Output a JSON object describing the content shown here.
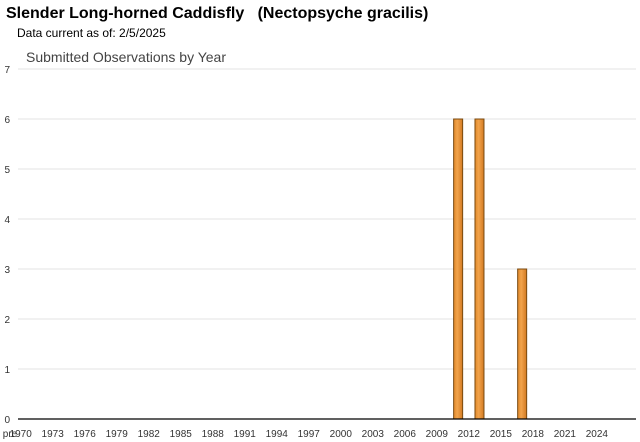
{
  "header": {
    "common_name": "Slender Long-horned Caddisfly",
    "scientific_name": "(Nectopsyche gracilis)",
    "data_current": "Data current as of: 2/5/2025"
  },
  "chart_data": {
    "type": "bar",
    "title": "Submitted Observations by Year",
    "xlabel": "",
    "ylabel": "",
    "ylim": [
      0,
      7
    ],
    "yticks": [
      0,
      1,
      2,
      3,
      4,
      5,
      6,
      7
    ],
    "grid": true,
    "categories": [
      "pre",
      "1970",
      "1971",
      "1972",
      "1973",
      "1974",
      "1975",
      "1976",
      "1977",
      "1978",
      "1979",
      "1980",
      "1981",
      "1982",
      "1983",
      "1984",
      "1985",
      "1986",
      "1987",
      "1988",
      "1989",
      "1990",
      "1991",
      "1992",
      "1993",
      "1994",
      "1995",
      "1996",
      "1997",
      "1998",
      "1999",
      "2000",
      "2001",
      "2002",
      "2003",
      "2004",
      "2005",
      "2006",
      "2007",
      "2008",
      "2009",
      "2010",
      "2011",
      "2012",
      "2013",
      "2014",
      "2015",
      "2016",
      "2017",
      "2018",
      "2019",
      "2020",
      "2021",
      "2022",
      "2023",
      "2024",
      "2025"
    ],
    "tick_labels": [
      "pre",
      "1970",
      "1973",
      "1976",
      "1979",
      "1982",
      "1985",
      "1988",
      "1991",
      "1994",
      "1997",
      "2000",
      "2003",
      "2006",
      "2009",
      "2012",
      "2015",
      "2018",
      "2021",
      "2024"
    ],
    "values": [
      0,
      0,
      0,
      0,
      0,
      0,
      0,
      0,
      0,
      0,
      0,
      0,
      0,
      0,
      0,
      0,
      0,
      0,
      0,
      0,
      0,
      0,
      0,
      0,
      0,
      0,
      0,
      0,
      0,
      0,
      0,
      0,
      0,
      0,
      0,
      0,
      0,
      0,
      0,
      0,
      0,
      0,
      6,
      0,
      6,
      0,
      0,
      0,
      3,
      0,
      0,
      0,
      0,
      0,
      0,
      0,
      0
    ],
    "bar_color": "#F2A34B",
    "bar_stroke": "#7A4A10"
  }
}
